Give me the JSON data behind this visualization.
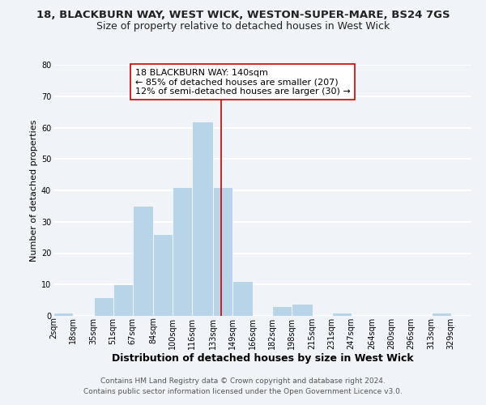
{
  "title1": "18, BLACKBURN WAY, WEST WICK, WESTON-SUPER-MARE, BS24 7GS",
  "title2": "Size of property relative to detached houses in West Wick",
  "xlabel": "Distribution of detached houses by size in West Wick",
  "ylabel": "Number of detached properties",
  "bar_edges": [
    2,
    18,
    35,
    51,
    67,
    84,
    100,
    116,
    133,
    149,
    166,
    182,
    198,
    215,
    231,
    247,
    264,
    280,
    296,
    313,
    329,
    346
  ],
  "bar_heights": [
    1,
    0,
    6,
    10,
    35,
    26,
    41,
    62,
    41,
    11,
    0,
    3,
    4,
    0,
    1,
    0,
    0,
    0,
    0,
    1,
    0
  ],
  "bar_color": "#b8d4e8",
  "bar_edge_color": "#ffffff",
  "property_line_x": 140,
  "property_line_color": "#cc0000",
  "annotation_line1": "18 BLACKBURN WAY: 140sqm",
  "annotation_line2": "← 85% of detached houses are smaller (207)",
  "annotation_line3": "12% of semi-detached houses are larger (30) →",
  "ylim": [
    0,
    80
  ],
  "xlim": [
    2,
    346
  ],
  "yticks": [
    0,
    10,
    20,
    30,
    40,
    50,
    60,
    70,
    80
  ],
  "xtick_labels": [
    "2sqm",
    "18sqm",
    "35sqm",
    "51sqm",
    "67sqm",
    "84sqm",
    "100sqm",
    "116sqm",
    "133sqm",
    "149sqm",
    "166sqm",
    "182sqm",
    "198sqm",
    "215sqm",
    "231sqm",
    "247sqm",
    "264sqm",
    "280sqm",
    "296sqm",
    "313sqm",
    "329sqm"
  ],
  "xtick_positions": [
    2,
    18,
    35,
    51,
    67,
    84,
    100,
    116,
    133,
    149,
    166,
    182,
    198,
    215,
    231,
    247,
    264,
    280,
    296,
    313,
    329
  ],
  "footer1": "Contains HM Land Registry data © Crown copyright and database right 2024.",
  "footer2": "Contains public sector information licensed under the Open Government Licence v3.0.",
  "background_color": "#f0f4f8",
  "grid_color": "#ffffff",
  "title1_fontsize": 9.5,
  "title2_fontsize": 9,
  "xlabel_fontsize": 9,
  "ylabel_fontsize": 8,
  "tick_fontsize": 7,
  "annotation_fontsize": 8,
  "footer_fontsize": 6.5
}
